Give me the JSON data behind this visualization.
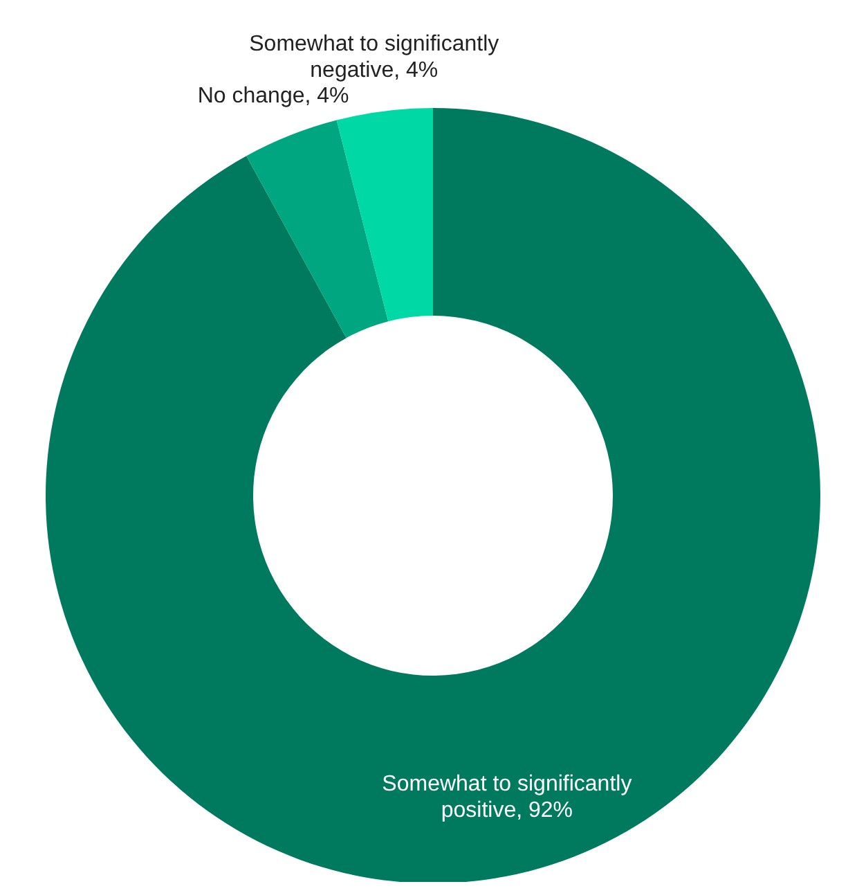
{
  "chart_data": {
    "type": "donut",
    "categories": [
      "Somewhat to significantly positive",
      "No change",
      "Somewhat to significantly negative"
    ],
    "values": [
      92,
      4,
      4
    ],
    "value_labels": [
      ", 92%",
      ", 4%",
      ", 4%"
    ],
    "colors": [
      "#007a5e",
      "#00a67f",
      "#00d9a6"
    ]
  }
}
